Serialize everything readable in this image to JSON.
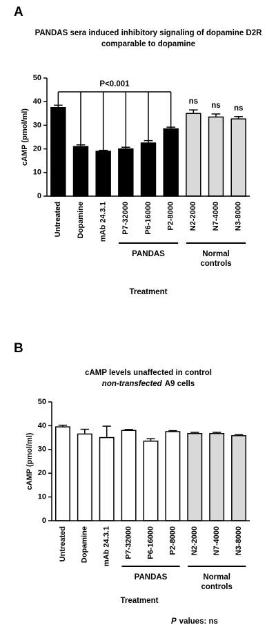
{
  "chart_data": [
    {
      "type": "bar",
      "panel": "A",
      "title": "PANDAS sera induced inhibitory signaling of dopamine D2R",
      "subtitle": [
        {
          "text": "comparable to dopamine"
        }
      ],
      "ylabel": "cAMP (pmol/ml)",
      "xlabel": "Treatment",
      "categories": [
        "Untreated",
        "Dopamine",
        "mAb 24.3.1",
        "P7-32000",
        "P6-16000",
        "P2-8000",
        "N2-2000",
        "N7-4000",
        "N3-8000"
      ],
      "values": [
        37.5,
        21,
        19,
        20,
        22.5,
        28.5,
        35,
        33.5,
        32.7
      ],
      "errors": [
        1,
        0.7,
        0.4,
        0.7,
        1,
        0.7,
        1.5,
        1.3,
        1
      ],
      "colors": [
        "#000000",
        "#000000",
        "#000000",
        "#000000",
        "#000000",
        "#000000",
        "#d9d9d9",
        "#d9d9d9",
        "#d9d9d9"
      ],
      "ylim": [
        0,
        50
      ],
      "yticks": [
        0,
        10,
        20,
        30,
        40,
        50
      ],
      "bar_labels": [
        null,
        null,
        null,
        null,
        null,
        null,
        "ns",
        "ns",
        "ns"
      ],
      "bracket": {
        "label": "P<0.001",
        "from": 0,
        "to": 5
      },
      "groups": [
        {
          "label": "PANDAS",
          "from": 3,
          "to": 5
        },
        {
          "label": "Normal controls",
          "from": 6,
          "to": 8
        }
      ]
    },
    {
      "type": "bar",
      "panel": "B",
      "title": "cAMP levels unaffected in control",
      "subtitle": [
        {
          "text": "non-transfected",
          "italic": true
        },
        {
          "text": "A9 cells"
        }
      ],
      "ylabel": "cAMP (pmol/ml)",
      "xlabel": "Treatment",
      "categories": [
        "Untreated",
        "Dopamine",
        "mAb 24.3.1",
        "P7-32000",
        "P6-16000",
        "P2-8000",
        "N2-2000",
        "N7-4000",
        "N3-8000"
      ],
      "values": [
        39.5,
        36.5,
        35,
        38,
        33.5,
        37.5,
        36.7,
        36.7,
        35.8
      ],
      "errors": [
        0.7,
        2,
        4.8,
        0.4,
        1,
        0.4,
        0.5,
        0.5,
        0.4
      ],
      "colors": [
        "#ffffff",
        "#ffffff",
        "#ffffff",
        "#ffffff",
        "#ffffff",
        "#ffffff",
        "#d9d9d9",
        "#d9d9d9",
        "#d9d9d9"
      ],
      "ylim": [
        0,
        50
      ],
      "yticks": [
        0,
        10,
        20,
        30,
        40,
        50
      ],
      "groups": [
        {
          "label": "PANDAS",
          "from": 3,
          "to": 5
        },
        {
          "label": "Normal controls",
          "from": 6,
          "to": 8
        }
      ],
      "footnote": [
        {
          "text": "P",
          "italic": true
        },
        {
          "text": "values: ns"
        }
      ]
    }
  ]
}
